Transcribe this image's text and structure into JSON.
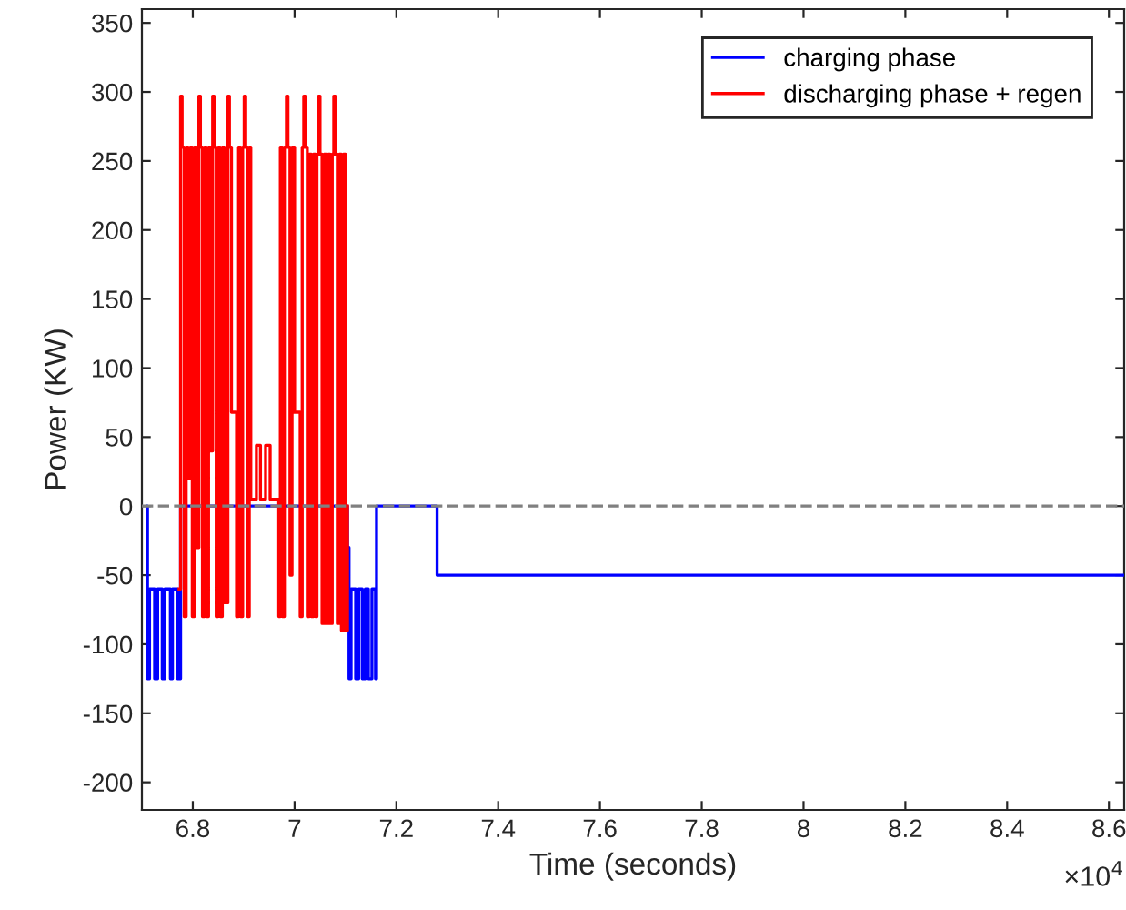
{
  "chart_data": {
    "type": "step",
    "xlabel": "Time (seconds)",
    "ylabel": "Power (KW)",
    "xlim": [
      6.7,
      8.63
    ],
    "ylim": [
      -220,
      360
    ],
    "xticks": [
      6.8,
      7,
      7.2,
      7.4,
      7.6,
      7.8,
      8,
      8.2,
      8.4,
      8.6
    ],
    "yticks": [
      -200,
      -150,
      -100,
      -50,
      0,
      50,
      100,
      150,
      200,
      250,
      300,
      350
    ],
    "annotations": [
      "×10$^{4}$"
    ],
    "legend": "top right",
    "grid": false,
    "line_style": "solid",
    "marker": "none",
    "ref_lines": [
      {
        "axis": "y",
        "value": 0,
        "label": null,
        "color": "#808080",
        "line_style": "dashed"
      }
    ],
    "series": [
      {
        "name": "charging phase",
        "color": "#0000ff",
        "x": [
          6.71,
          6.711,
          6.715,
          6.725,
          6.731,
          6.74,
          6.745,
          6.756,
          6.76,
          6.77,
          6.776,
          7.104,
          7.107,
          7.111,
          7.12,
          7.126,
          7.133,
          7.139,
          7.145,
          7.152,
          7.159,
          7.161,
          7.28,
          8.63
        ],
        "values": [
          0,
          -125,
          -60,
          -125,
          -60,
          -125,
          -60,
          -125,
          -60,
          -125,
          0,
          -30,
          -125,
          -60,
          -125,
          -60,
          -125,
          -60,
          -125,
          -60,
          -125,
          0,
          -50,
          -50
        ]
      },
      {
        "name": "discharging phase + regen",
        "color": "#ff0000",
        "x": [
          6.773,
          6.776,
          6.779,
          6.783,
          6.787,
          6.791,
          6.795,
          6.799,
          6.803,
          6.808,
          6.812,
          6.815,
          6.819,
          6.823,
          6.827,
          6.831,
          6.835,
          6.839,
          6.842,
          6.846,
          6.85,
          6.854,
          6.858,
          6.862,
          6.869,
          6.872,
          6.876,
          6.886,
          6.89,
          6.894,
          6.898,
          6.901,
          6.904,
          6.908,
          6.911,
          6.914,
          6.925,
          6.933,
          6.943,
          6.952,
          6.969,
          6.972,
          6.976,
          6.98,
          6.984,
          6.987,
          6.991,
          6.995,
          7.0,
          7.011,
          7.015,
          7.018,
          7.021,
          7.025,
          7.029,
          7.033,
          7.037,
          7.041,
          7.044,
          7.047,
          7.05,
          7.054,
          7.058,
          7.062,
          7.066,
          7.07,
          7.074,
          7.077,
          7.08,
          7.084,
          7.088,
          7.092,
          7.096,
          7.1,
          7.104
        ],
        "values": [
          -60,
          297,
          260,
          -80,
          260,
          20,
          260,
          -80,
          260,
          -30,
          297,
          260,
          -80,
          260,
          -80,
          260,
          40,
          297,
          260,
          -80,
          260,
          -80,
          260,
          -70,
          297,
          260,
          68,
          -80,
          260,
          -80,
          260,
          297,
          260,
          -80,
          260,
          5,
          44,
          5,
          44,
          5,
          -80,
          260,
          -80,
          260,
          297,
          260,
          -50,
          260,
          68,
          -80,
          260,
          297,
          260,
          -80,
          255,
          -80,
          255,
          -80,
          255,
          297,
          255,
          -85,
          255,
          -85,
          255,
          -85,
          255,
          297,
          255,
          -85,
          255,
          -90,
          255,
          -90,
          0
        ]
      }
    ]
  }
}
